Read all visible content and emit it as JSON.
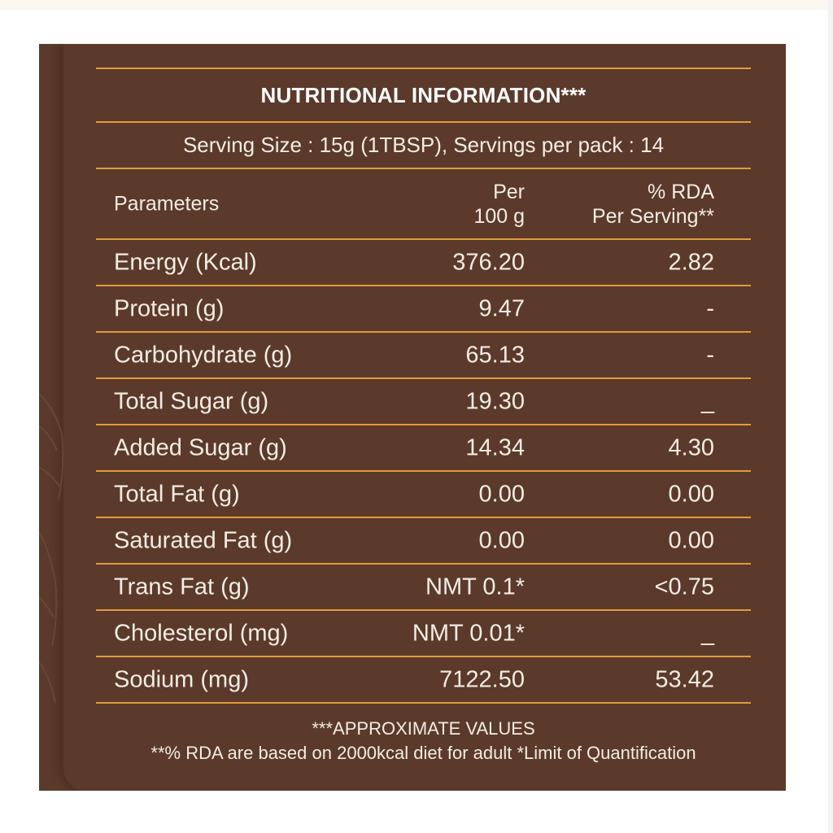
{
  "title": "NUTRITIONAL INFORMATION***",
  "serving_line": "Serving Size : 15g (1TBSP),  Servings per pack : 14",
  "header": {
    "parameters": "Parameters",
    "per_line1": "Per",
    "per_line2": "100 g",
    "rda_line1": "% RDA",
    "rda_line2": "Per Serving**"
  },
  "rows": [
    {
      "label": "Energy (Kcal)",
      "per100g": "376.20",
      "rda": "2.82"
    },
    {
      "label": "Protein (g)",
      "per100g": "9.47",
      "rda": "-"
    },
    {
      "label": "Carbohydrate (g)",
      "per100g": "65.13",
      "rda": "-"
    },
    {
      "label": "Total Sugar (g)",
      "per100g": "19.30",
      "rda": "_"
    },
    {
      "label": "Added Sugar (g)",
      "per100g": "14.34",
      "rda": "4.30"
    },
    {
      "label": "Total Fat (g)",
      "per100g": "0.00",
      "rda": "0.00"
    },
    {
      "label": "Saturated Fat (g)",
      "per100g": "0.00",
      "rda": "0.00"
    },
    {
      "label": "Trans Fat (g)",
      "per100g": "NMT 0.1*",
      "rda": "<0.75"
    },
    {
      "label": "Cholesterol (mg)",
      "per100g": "NMT 0.01*",
      "rda": "_"
    },
    {
      "label": "Sodium (mg)",
      "per100g": "7122.50",
      "rda": "53.42"
    }
  ],
  "footer": {
    "line1": "***APPROXIMATE VALUES",
    "line2": "**% RDA are based on 2000kcal diet for adult *Limit of Quantification"
  },
  "colors": {
    "background": "#5b3a2b",
    "rule": "#e39a3f",
    "text": "#f3ece4"
  }
}
